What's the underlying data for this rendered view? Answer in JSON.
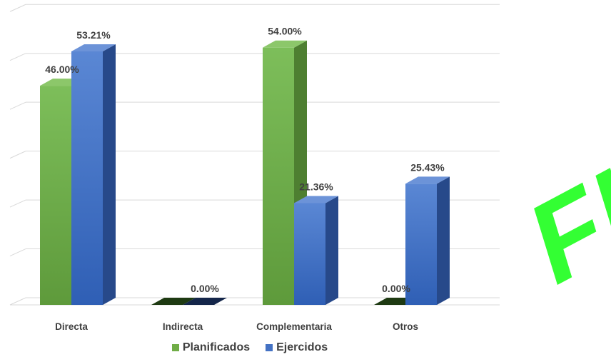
{
  "chart_data": {
    "type": "bar",
    "categories": [
      "Directa",
      "Indirecta",
      "Complementaria",
      "Otros"
    ],
    "series": [
      {
        "name": "Planificados",
        "values": [
          46.0,
          0.0,
          54.0,
          0.0
        ],
        "labels": [
          "46.00%",
          "",
          "54.00%",
          "0.00%"
        ],
        "color": "#70AD47"
      },
      {
        "name": "Ejercidos",
        "values": [
          53.21,
          0.0,
          21.36,
          25.43
        ],
        "labels": [
          "53.21%",
          "0.00%",
          "21.36%",
          "25.43%"
        ],
        "color": "#4472C4"
      }
    ],
    "ylim": [
      0,
      60
    ],
    "grid": true,
    "legend_position": "bottom"
  },
  "watermark": {
    "text": "FIS",
    "color": "#33FF33"
  }
}
